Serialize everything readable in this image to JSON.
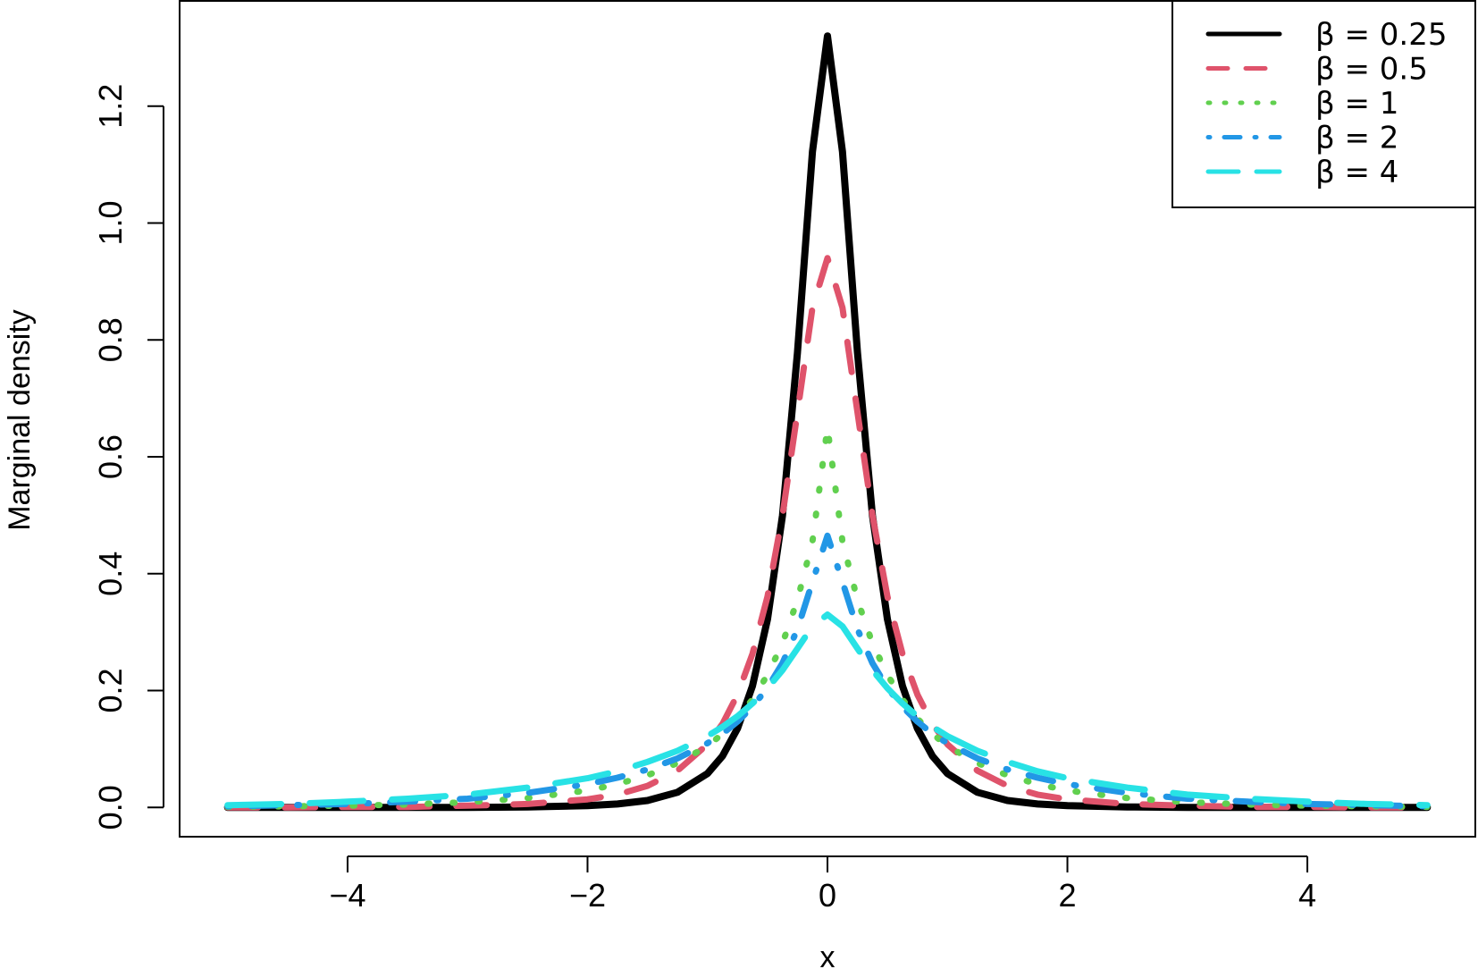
{
  "chart_data": {
    "type": "line",
    "title": "",
    "xlabel": "x",
    "ylabel": "Marginal density",
    "xlim": [
      -5.4,
      5.4
    ],
    "ylim": [
      -0.05,
      1.38
    ],
    "x_ticks": [
      -4,
      -2,
      0,
      2,
      4
    ],
    "x_tick_labels": [
      "−4",
      "−2",
      "0",
      "2",
      "4"
    ],
    "y_ticks": [
      0.0,
      0.2,
      0.4,
      0.6,
      0.8,
      1.0,
      1.2
    ],
    "y_tick_labels": [
      "0.0",
      "0.2",
      "0.4",
      "0.6",
      "0.8",
      "1.0",
      "1.2"
    ],
    "grid": false,
    "legend_position": "top-right",
    "x": [
      -5,
      -4.5,
      -4,
      -3.5,
      -3,
      -2.5,
      -2,
      -1.75,
      -1.5,
      -1.25,
      -1,
      -0.875,
      -0.75,
      -0.625,
      -0.5,
      -0.375,
      -0.25,
      -0.125,
      0,
      0.125,
      0.25,
      0.375,
      0.5,
      0.625,
      0.75,
      0.875,
      1,
      1.25,
      1.5,
      1.75,
      2,
      2.5,
      3,
      3.5,
      4,
      4.5,
      5
    ],
    "series": [
      {
        "name": "β = 0.25",
        "color": "#000000",
        "dash": "solid",
        "values": [
          0.0,
          0.0,
          0.0,
          0.0,
          0.0,
          0.001,
          0.003,
          0.006,
          0.012,
          0.026,
          0.058,
          0.088,
          0.135,
          0.208,
          0.322,
          0.5,
          0.778,
          1.122,
          1.32,
          1.122,
          0.778,
          0.5,
          0.322,
          0.208,
          0.135,
          0.088,
          0.058,
          0.026,
          0.012,
          0.006,
          0.003,
          0.001,
          0.0,
          0.0,
          0.0,
          0.0,
          0.0
        ]
      },
      {
        "name": "β = 0.5",
        "color": "#df536b",
        "dash": "dashed",
        "values": [
          0.0,
          0.0,
          0.001,
          0.001,
          0.003,
          0.006,
          0.014,
          0.022,
          0.037,
          0.063,
          0.108,
          0.143,
          0.193,
          0.263,
          0.361,
          0.5,
          0.676,
          0.855,
          0.94,
          0.855,
          0.676,
          0.5,
          0.361,
          0.263,
          0.193,
          0.143,
          0.108,
          0.063,
          0.037,
          0.022,
          0.014,
          0.006,
          0.003,
          0.001,
          0.001,
          0.0,
          0.0
        ]
      },
      {
        "name": "β = 1",
        "color": "#61d04f",
        "dash": "dotted",
        "values": [
          0.001,
          0.002,
          0.003,
          0.005,
          0.009,
          0.016,
          0.029,
          0.04,
          0.055,
          0.076,
          0.105,
          0.126,
          0.152,
          0.185,
          0.227,
          0.281,
          0.355,
          0.455,
          0.65,
          0.455,
          0.355,
          0.281,
          0.227,
          0.185,
          0.152,
          0.126,
          0.105,
          0.076,
          0.055,
          0.04,
          0.029,
          0.016,
          0.009,
          0.005,
          0.003,
          0.002,
          0.001
        ]
      },
      {
        "name": "β = 2",
        "color": "#2297e6",
        "dash": "dotdash",
        "values": [
          0.002,
          0.004,
          0.006,
          0.01,
          0.015,
          0.025,
          0.04,
          0.051,
          0.065,
          0.084,
          0.11,
          0.126,
          0.147,
          0.172,
          0.205,
          0.247,
          0.305,
          0.386,
          0.465,
          0.386,
          0.305,
          0.247,
          0.205,
          0.172,
          0.147,
          0.126,
          0.11,
          0.084,
          0.065,
          0.051,
          0.04,
          0.025,
          0.015,
          0.01,
          0.006,
          0.004,
          0.002
        ]
      },
      {
        "name": "β = 4",
        "color": "#28e2e5",
        "dash": "longdash",
        "values": [
          0.004,
          0.006,
          0.01,
          0.015,
          0.022,
          0.034,
          0.05,
          0.062,
          0.078,
          0.097,
          0.122,
          0.138,
          0.156,
          0.178,
          0.204,
          0.235,
          0.272,
          0.31,
          0.33,
          0.31,
          0.272,
          0.235,
          0.204,
          0.178,
          0.156,
          0.138,
          0.122,
          0.097,
          0.078,
          0.062,
          0.05,
          0.034,
          0.022,
          0.015,
          0.01,
          0.006,
          0.004
        ]
      }
    ]
  }
}
